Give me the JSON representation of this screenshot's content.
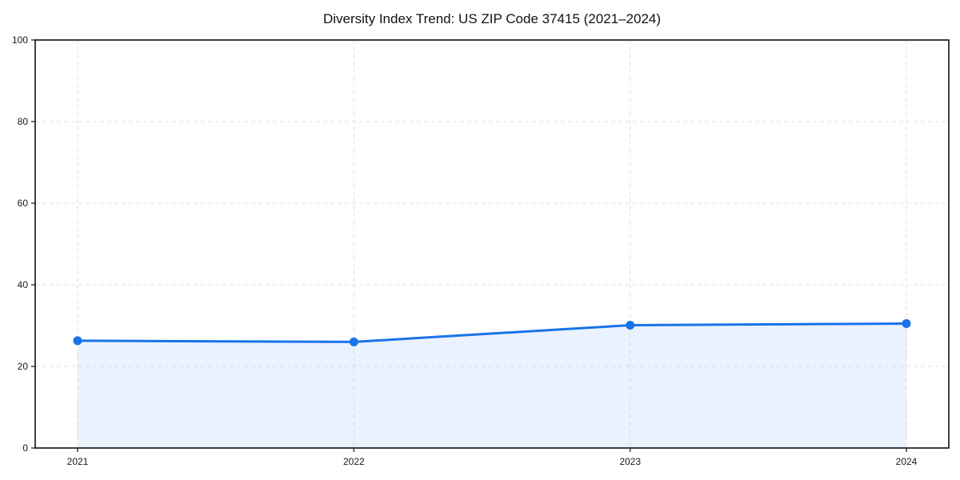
{
  "chart_data": {
    "type": "area",
    "title": "Diversity Index Trend: US ZIP Code 37415 (2021–2024)",
    "categories": [
      "2021",
      "2022",
      "2023",
      "2024"
    ],
    "series": [
      {
        "name": "Diversity Index",
        "values": [
          26.3,
          26.0,
          30.1,
          30.5
        ]
      }
    ],
    "xlabel": "",
    "ylabel": "",
    "ylim": [
      0,
      100
    ],
    "yticks": [
      0,
      20,
      40,
      60,
      80,
      100
    ],
    "grid": true,
    "grid_style": "dashed",
    "legend": "none",
    "markers": true,
    "colors": {
      "line": "#1a73e8",
      "fill": "#1a73e8",
      "fill_opacity": 0.09,
      "grid": "#e2e2e2",
      "axis": "#111111",
      "tick_label": "#1a1a1a",
      "title": "#111111",
      "background": "#ffffff"
    }
  }
}
